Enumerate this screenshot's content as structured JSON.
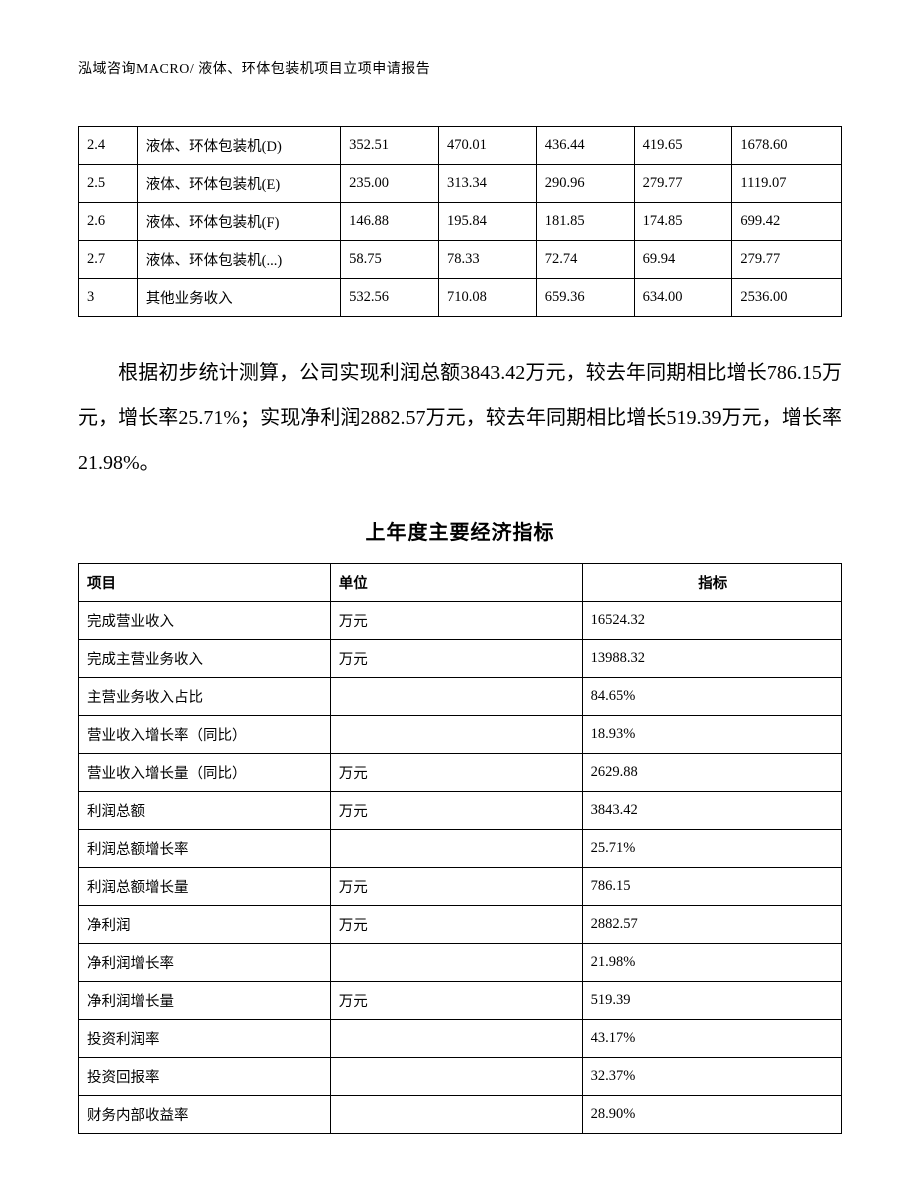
{
  "header": "泓域咨询MACRO/   液体、环体包装机项目立项申请报告",
  "table1": {
    "rows": [
      {
        "idx": "2.4",
        "name": "液体、环体包装机(D)",
        "q1": "352.51",
        "q2": "470.01",
        "q3": "436.44",
        "q4": "419.65",
        "total": "1678.60"
      },
      {
        "idx": "2.5",
        "name": "液体、环体包装机(E)",
        "q1": "235.00",
        "q2": "313.34",
        "q3": "290.96",
        "q4": "279.77",
        "total": "1119.07"
      },
      {
        "idx": "2.6",
        "name": "液体、环体包装机(F)",
        "q1": "146.88",
        "q2": "195.84",
        "q3": "181.85",
        "q4": "174.85",
        "total": "699.42"
      },
      {
        "idx": "2.7",
        "name": "液体、环体包装机(...)",
        "q1": "58.75",
        "q2": "78.33",
        "q3": "72.74",
        "q4": "69.94",
        "total": "279.77"
      },
      {
        "idx": "3",
        "name": "其他业务收入",
        "q1": "532.56",
        "q2": "710.08",
        "q3": "659.36",
        "q4": "634.00",
        "total": "2536.00"
      }
    ]
  },
  "paragraph": "根据初步统计测算，公司实现利润总额3843.42万元，较去年同期相比增长786.15万元，增长率25.71%；实现净利润2882.57万元，较去年同期相比增长519.39万元，增长率21.98%。",
  "section_title": "上年度主要经济指标",
  "table2": {
    "headers": {
      "item": "项目",
      "unit": "单位",
      "value": "指标"
    },
    "rows": [
      {
        "item": "完成营业收入",
        "unit": "万元",
        "value": "16524.32"
      },
      {
        "item": "完成主营业务收入",
        "unit": "万元",
        "value": "13988.32"
      },
      {
        "item": "主营业务收入占比",
        "unit": "",
        "value": "84.65%"
      },
      {
        "item": "营业收入增长率（同比）",
        "unit": "",
        "value": "18.93%"
      },
      {
        "item": "营业收入增长量（同比）",
        "unit": "万元",
        "value": "2629.88"
      },
      {
        "item": "利润总额",
        "unit": "万元",
        "value": "3843.42"
      },
      {
        "item": "利润总额增长率",
        "unit": "",
        "value": "25.71%"
      },
      {
        "item": "利润总额增长量",
        "unit": "万元",
        "value": "786.15"
      },
      {
        "item": "净利润",
        "unit": "万元",
        "value": "2882.57"
      },
      {
        "item": "净利润增长率",
        "unit": "",
        "value": "21.98%"
      },
      {
        "item": "净利润增长量",
        "unit": "万元",
        "value": "519.39"
      },
      {
        "item": "投资利润率",
        "unit": "",
        "value": "43.17%"
      },
      {
        "item": "投资回报率",
        "unit": "",
        "value": "32.37%"
      },
      {
        "item": "财务内部收益率",
        "unit": "",
        "value": "28.90%"
      }
    ]
  }
}
